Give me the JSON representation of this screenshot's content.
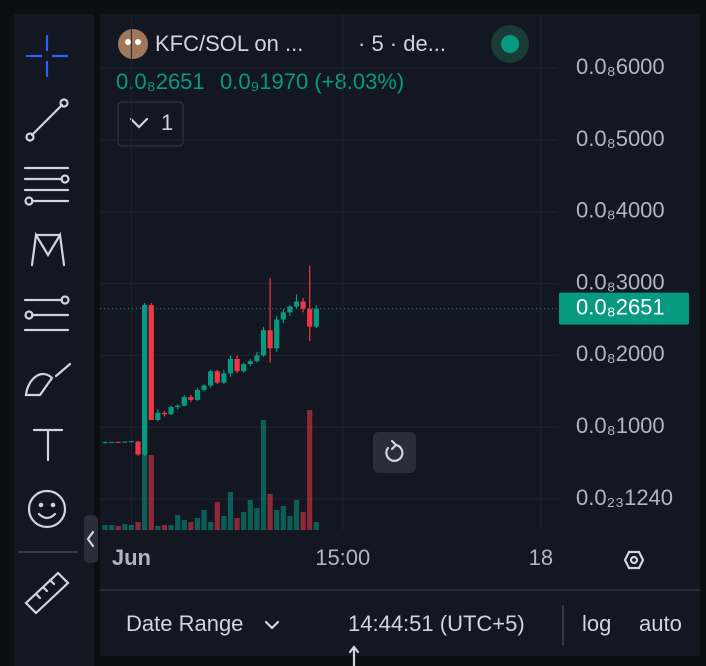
{
  "header": {
    "symbol": "KFC/SOL on ...",
    "interval": "· 5 · de...",
    "price": "0.0₈2651",
    "change": "0.0₉1970 (+8.03%)",
    "indicator_count": "1"
  },
  "chart_data": {
    "type": "candlestick",
    "categories": [
      null,
      null,
      null,
      null,
      null,
      null,
      null,
      null,
      null,
      null,
      null,
      null,
      null,
      null,
      null,
      null,
      null,
      null,
      null,
      null,
      null,
      null,
      null,
      null,
      null,
      null,
      null,
      null,
      null,
      null,
      null,
      null,
      null
    ],
    "open": [
      790,
      790,
      795,
      790,
      800,
      800,
      620,
      2700,
      1100,
      1200,
      1180,
      1280,
      1300,
      1420,
      1380,
      1520,
      1580,
      1780,
      1620,
      1750,
      1950,
      1780,
      1880,
      1920,
      2000,
      2350,
      2100,
      2500,
      2600,
      2680,
      2750,
      2650,
      2400
    ],
    "high": [
      800,
      795,
      800,
      800,
      810,
      810,
      2730,
      2730,
      1250,
      1230,
      1300,
      1320,
      1450,
      1450,
      1550,
      1600,
      1800,
      1800,
      1800,
      2000,
      2000,
      1900,
      1950,
      2050,
      2400,
      3080,
      2550,
      2650,
      2700,
      2850,
      2800,
      3250,
      2700
    ],
    "low": [
      780,
      785,
      790,
      785,
      790,
      600,
      600,
      1100,
      1080,
      1150,
      1170,
      1250,
      1290,
      1350,
      1370,
      1500,
      1550,
      1600,
      1600,
      1700,
      1750,
      1760,
      1850,
      1900,
      1980,
      1900,
      2050,
      2450,
      2550,
      2650,
      2600,
      2200,
      2380
    ],
    "close": [
      790,
      795,
      790,
      800,
      805,
      620,
      2700,
      1100,
      1200,
      1180,
      1280,
      1300,
      1420,
      1380,
      1520,
      1580,
      1780,
      1620,
      1750,
      1950,
      1780,
      1880,
      1920,
      2000,
      2350,
      2100,
      2500,
      2600,
      2680,
      2750,
      2650,
      2400,
      2651
    ],
    "volume": [
      5,
      5,
      4,
      6,
      5,
      8,
      225,
      75,
      4,
      5,
      5,
      15,
      10,
      8,
      12,
      20,
      8,
      28,
      14,
      38,
      12,
      18,
      30,
      22,
      110,
      36,
      20,
      24,
      14,
      30,
      18,
      120,
      8
    ],
    "up_color": "#089981",
    "down_color": "#f23645",
    "ylim": [
      -432,
      6755
    ],
    "yticks": [
      {
        "value": 6000,
        "label": "0.0₈6000"
      },
      {
        "value": 5000,
        "label": "0.0₈5000"
      },
      {
        "value": 4000,
        "label": "0.0₈4000"
      },
      {
        "value": 3000,
        "label": "0.0₈3000"
      },
      {
        "value": 2000,
        "label": "0.0₈2000"
      },
      {
        "value": 1000,
        "label": "0.0₈1000"
      },
      {
        "value": 1.24e-12,
        "label": "0.0₂₃1240"
      }
    ],
    "xlim": [
      -0.76,
      68.6
    ],
    "xticks": [
      {
        "value": 4,
        "label": "Jun"
      },
      {
        "value": 36,
        "label": "15:00"
      },
      {
        "value": 66,
        "label": "18"
      }
    ],
    "last_price": {
      "value": 2651,
      "label": "0.0₈2651"
    },
    "grid": true
  },
  "footer": {
    "date_range": "Date Range",
    "time": "14:44:51 (UTC+5)",
    "log": "log",
    "auto": "auto"
  }
}
